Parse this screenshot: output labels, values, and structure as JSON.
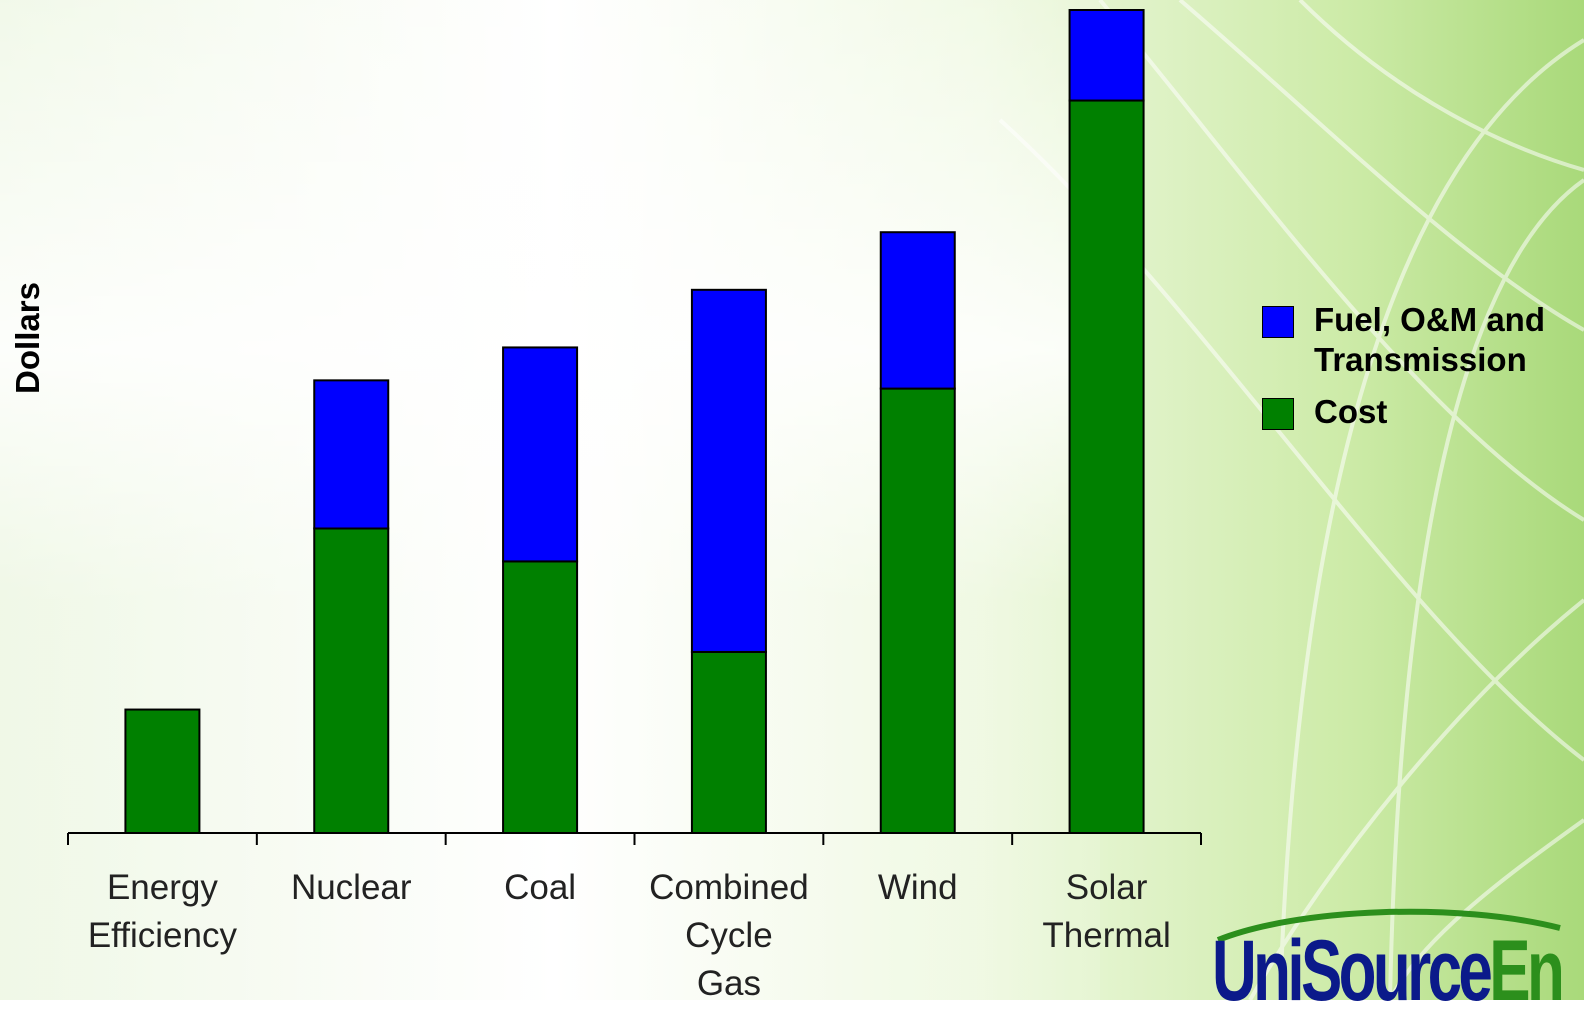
{
  "chart_data": {
    "type": "bar",
    "stacked": true,
    "title": "",
    "xlabel": "",
    "ylabel": "Dollars",
    "ylim": [
      0,
      100
    ],
    "y_tick_labels_visible": false,
    "grid": false,
    "legend_position": "right",
    "categories": [
      "Energy Efficiency",
      "Nuclear",
      "Coal",
      "Combined Cycle Gas",
      "Wind",
      "Solar Thermal"
    ],
    "category_lines": [
      [
        "Energy",
        "Efficiency"
      ],
      [
        "Nuclear"
      ],
      [
        "Coal"
      ],
      [
        "Combined",
        "Cycle",
        "Gas"
      ],
      [
        "Wind"
      ],
      [
        "Solar",
        "Thermal"
      ]
    ],
    "series": [
      {
        "name": "Cost",
        "color": "#008000",
        "values": [
          15,
          37,
          33,
          22,
          54,
          89
        ]
      },
      {
        "name": "Fuel, O&M and Transmission",
        "color": "#0000ff",
        "values": [
          0,
          18,
          26,
          44,
          19,
          11
        ]
      }
    ]
  },
  "legend": {
    "items": [
      {
        "label": "Fuel, O&M and Transmission",
        "color": "#0000ff"
      },
      {
        "label": "Cost",
        "color": "#008000"
      }
    ]
  },
  "logo": {
    "text_main": "UniSource",
    "text_accent": "En"
  },
  "colors": {
    "bar_cost": "#008000",
    "bar_fuel": "#0000ff",
    "logo_blue": "#0b1a8a",
    "logo_green": "#2c8f1c"
  }
}
